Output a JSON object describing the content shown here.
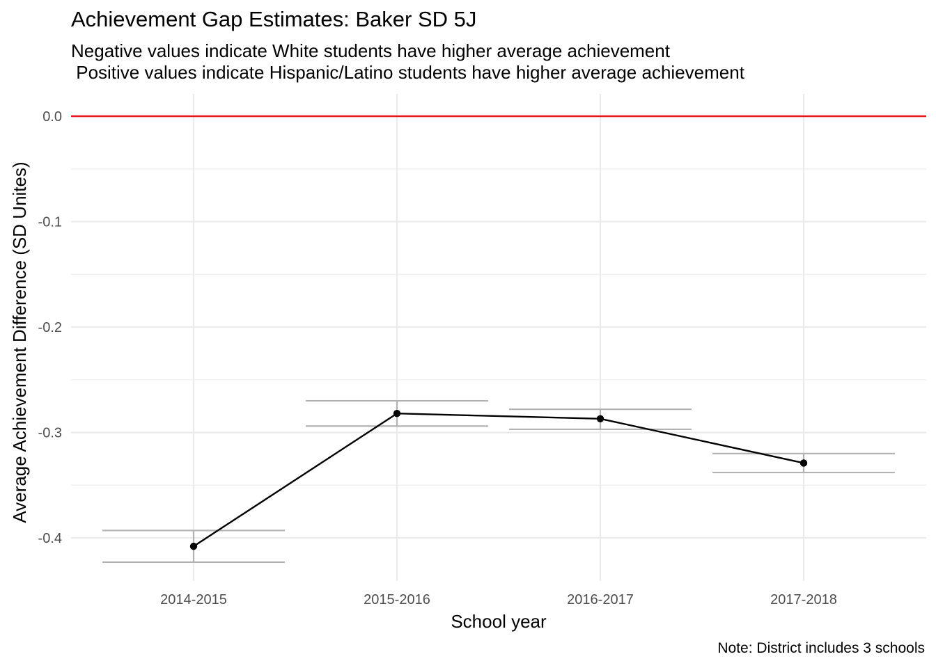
{
  "title": "Achievement Gap Estimates: Baker SD 5J",
  "subtitle": "Negative values indicate White students have higher average achievement\n Positive values indicate Hispanic/Latino students have higher average achievement",
  "caption": "Note: District includes 3 schools",
  "chart_data": {
    "type": "line",
    "title": "Achievement Gap Estimates: Baker SD 5J",
    "xlabel": "School year",
    "ylabel": "Average Achievement Difference (SD Unites)",
    "categories": [
      "2014-2015",
      "2015-2016",
      "2016-2017",
      "2017-2018"
    ],
    "values": [
      -0.408,
      -0.282,
      -0.287,
      -0.329
    ],
    "error_bars": [
      {
        "low": -0.423,
        "high": -0.393
      },
      {
        "low": -0.294,
        "high": -0.27
      },
      {
        "low": -0.297,
        "high": -0.278
      },
      {
        "low": -0.338,
        "high": -0.32
      }
    ],
    "reference_line": {
      "y": 0.0,
      "color": "#e8141e"
    },
    "ylim": [
      -0.44,
      0.02
    ],
    "yticks": [
      0.0,
      -0.1,
      -0.2,
      -0.3,
      -0.4
    ],
    "ytick_labels": [
      "0.0",
      "-0.1",
      "-0.2",
      "-0.3",
      "-0.4"
    ],
    "grid": true,
    "colors": {
      "line": "#000000",
      "point": "#000000",
      "error_bar": "#b3b3b3",
      "reference": "#e8141e",
      "grid": "#ebebeb"
    }
  }
}
